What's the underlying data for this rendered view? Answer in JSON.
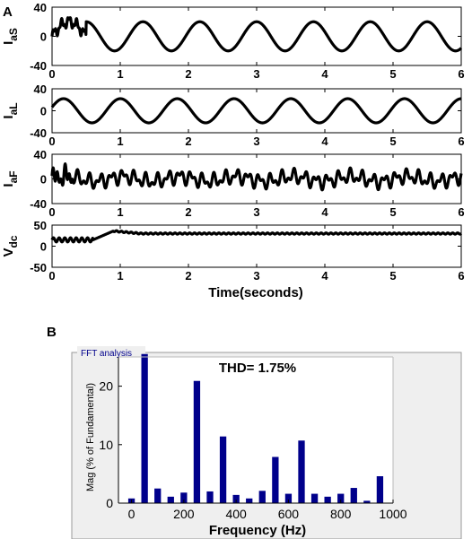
{
  "figure": {
    "panel_a_label": "A",
    "panel_b_label": "B",
    "time_axis_label": "Time(seconds)",
    "fft_box_label": "FFT analysis"
  },
  "chart_data": [
    {
      "type": "line",
      "panel": "A",
      "ylabel_main": "I",
      "ylabel_sub": "aS",
      "xlim": [
        0,
        6
      ],
      "ylim": [
        -40,
        40
      ],
      "xticks": [
        0,
        1,
        2,
        3,
        4,
        5,
        6
      ],
      "yticks": [
        -40,
        0,
        40
      ],
      "description_of_signal": "distorted transient 0–0.5 s, then ~20 A sinusoid, ~1.2 Hz",
      "series": [
        {
          "amplitude": 20,
          "frequency_hz": 1.2,
          "phase": 0,
          "transient_until": 0.5,
          "transient_offset": 20,
          "color": "#000000"
        }
      ]
    },
    {
      "type": "line",
      "panel": "A",
      "ylabel_main": "I",
      "ylabel_sub": "aL",
      "xlim": [
        0,
        6
      ],
      "ylim": [
        -40,
        40
      ],
      "xticks": [
        0,
        1,
        2,
        3,
        4,
        5,
        6
      ],
      "yticks": [
        -40,
        0,
        40
      ],
      "series": [
        {
          "amplitude": 22,
          "frequency_hz": 1.2,
          "phase": 0.3,
          "color": "#000000"
        }
      ]
    },
    {
      "type": "line",
      "panel": "A",
      "ylabel_main": "I",
      "ylabel_sub": "aF",
      "xlim": [
        0,
        6
      ],
      "ylim": [
        -40,
        40
      ],
      "xticks": [
        0,
        1,
        2,
        3,
        4,
        5,
        6
      ],
      "yticks": [
        -40,
        0,
        40
      ],
      "series": [
        {
          "amplitude": 12,
          "frequency_hz": 6,
          "color": "#000000"
        }
      ]
    },
    {
      "type": "line",
      "panel": "A",
      "ylabel_main": "V",
      "ylabel_sub": "dc",
      "xlim": [
        0,
        6
      ],
      "ylim": [
        -50,
        50
      ],
      "xticks": [
        0,
        1,
        2,
        3,
        4,
        5,
        6
      ],
      "yticks": [
        -50,
        0,
        50
      ],
      "series": [
        {
          "initial": 15,
          "final": 30,
          "rise_end": 0.9,
          "overshoot": 36,
          "color": "#000000"
        }
      ]
    },
    {
      "type": "bar",
      "panel": "B",
      "title": "THD= 1.75%",
      "xlabel": "Frequency (Hz)",
      "ylabel": "Mag (% of Fundamental)",
      "xlim": [
        -50,
        1000
      ],
      "ylim": [
        0,
        25
      ],
      "xticks": [
        0,
        200,
        400,
        600,
        800,
        1000
      ],
      "yticks": [
        0,
        10,
        20
      ],
      "bar_color": "#00008b",
      "x": [
        0,
        50,
        100,
        150,
        200,
        250,
        300,
        350,
        400,
        450,
        500,
        550,
        600,
        650,
        700,
        750,
        800,
        850,
        900,
        950
      ],
      "values": [
        0.8,
        25.5,
        2.5,
        1.1,
        1.8,
        20.9,
        2.0,
        11.4,
        1.4,
        0.8,
        2.1,
        7.9,
        1.6,
        10.7,
        1.6,
        1.1,
        1.6,
        2.6,
        0.4,
        4.6
      ]
    }
  ]
}
